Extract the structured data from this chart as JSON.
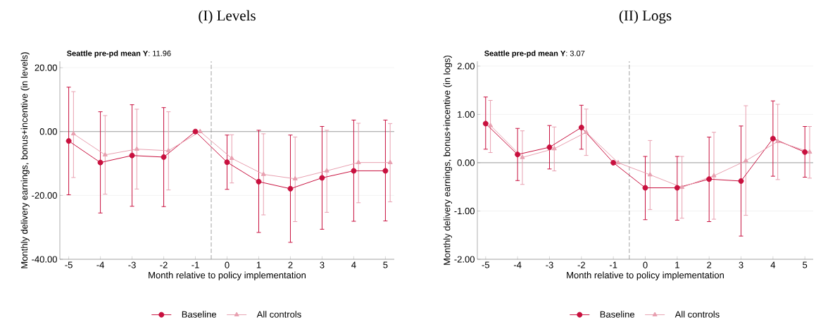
{
  "chart_data": [
    {
      "type": "line",
      "title": "(I) Levels",
      "xlabel": "Month relative to policy implementation",
      "ylabel": "Monthly delivery earnings, bonus+incentive (in levels)",
      "annotations": [
        "**Seattle pre-pd mean Y**:  11.96"
      ],
      "xlim": [
        -5.28,
        5.28
      ],
      "xticks": [
        -5,
        -4,
        -3,
        -2,
        -1,
        0,
        1,
        2,
        3,
        4,
        5
      ],
      "ylim": [
        -40,
        22
      ],
      "yticks": [
        {
          "value": -40,
          "label": "-40.00"
        },
        {
          "value": -20,
          "label": "-20.00"
        },
        {
          "value": 0,
          "label": "0.00"
        },
        {
          "value": 20,
          "label": "20.00"
        }
      ],
      "grid": "y",
      "legend": "bottom",
      "line_style": "solid",
      "ref_lines": [
        {
          "axis": "x",
          "value": -0.5,
          "color": "#8c8c8c",
          "line_style": "dashed"
        },
        {
          "axis": "y",
          "value": 0,
          "color": "#8c8c8c",
          "line_style": "solid"
        }
      ],
      "series": [
        {
          "name": "Baseline",
          "color": "#c8103e",
          "marker": "circle",
          "x": [
            -5,
            -4,
            -3,
            -2,
            -1,
            0,
            1,
            2,
            3,
            4,
            5
          ],
          "values": [
            -2.95,
            -9.7,
            -7.5,
            -8.0,
            0,
            -9.6,
            -15.7,
            -17.9,
            -14.5,
            -12.3,
            -12.3
          ],
          "errors": [
            [
              -19.8,
              13.9
            ],
            [
              -25.5,
              6.2
            ],
            [
              -23.4,
              8.4
            ],
            [
              -23.5,
              7.5
            ],
            null,
            [
              -18.1,
              -1.1
            ],
            [
              -31.6,
              0.4
            ],
            [
              -34.7,
              -1.1
            ],
            [
              -30.6,
              1.6
            ],
            [
              -28.1,
              3.6
            ],
            [
              -28.0,
              3.6
            ]
          ]
        },
        {
          "name": "All controls",
          "color": "#e8a0b0",
          "marker": "triangle",
          "x": [
            -4.85,
            -3.85,
            -2.85,
            -1.85,
            -0.85,
            0.15,
            1.15,
            2.15,
            3.15,
            4.15,
            5.15
          ],
          "values": [
            -0.7,
            -7.3,
            -5.5,
            -6.0,
            0,
            -8.4,
            -13.4,
            -14.8,
            -12.3,
            -9.7,
            -9.7
          ],
          "errors": [
            [
              -14.4,
              12.5
            ],
            [
              -19.6,
              5.0
            ],
            [
              -18.0,
              7.0
            ],
            [
              -18.3,
              6.2
            ],
            null,
            [
              -16.1,
              -1.0
            ],
            [
              -26.1,
              -0.7
            ],
            [
              -28.2,
              -1.7
            ],
            [
              -25.3,
              0.4
            ],
            [
              -22.3,
              2.6
            ],
            [
              -22.0,
              2.5
            ]
          ]
        }
      ]
    },
    {
      "type": "line",
      "title": "(II) Logs",
      "xlabel": "Month relative to policy implementation",
      "ylabel": "Monthly delivery earnings, bonus+incentive (in logs)",
      "annotations": [
        "**Seattle pre-pd mean Y**:  3.07"
      ],
      "xlim": [
        -5.26,
        5.26
      ],
      "xticks": [
        -5,
        -4,
        -3,
        -2,
        -1,
        0,
        1,
        2,
        3,
        4,
        5
      ],
      "ylim": [
        -2,
        2.1
      ],
      "yticks": [
        {
          "value": -2,
          "label": "-2.00"
        },
        {
          "value": -1,
          "label": "-1.00"
        },
        {
          "value": 0,
          "label": "0.00"
        },
        {
          "value": 1,
          "label": "1.00"
        },
        {
          "value": 2,
          "label": "2.00"
        }
      ],
      "grid": "y",
      "legend": "bottom",
      "line_style": "solid",
      "ref_lines": [
        {
          "axis": "x",
          "value": -0.5,
          "color": "#8c8c8c",
          "line_style": "dashed"
        },
        {
          "axis": "y",
          "value": 0,
          "color": "#8c8c8c",
          "line_style": "solid"
        }
      ],
      "series": [
        {
          "name": "Baseline",
          "color": "#c8103e",
          "marker": "circle",
          "x": [
            -5,
            -4,
            -3,
            -2,
            -1,
            0,
            1,
            2,
            3,
            4,
            5
          ],
          "values": [
            0.81,
            0.17,
            0.32,
            0.73,
            0,
            -0.52,
            -0.52,
            -0.34,
            -0.38,
            0.5,
            0.22
          ],
          "errors": [
            [
              0.28,
              1.36
            ],
            [
              -0.37,
              0.71
            ],
            [
              -0.13,
              0.77
            ],
            [
              0.28,
              1.19
            ],
            null,
            [
              -1.18,
              0.13
            ],
            [
              -1.19,
              0.13
            ],
            [
              -1.22,
              0.53
            ],
            [
              -1.52,
              0.76
            ],
            [
              -0.28,
              1.28
            ],
            [
              -0.3,
              0.75
            ]
          ]
        },
        {
          "name": "All controls",
          "color": "#e8a0b0",
          "marker": "triangle",
          "x": [
            -4.85,
            -3.85,
            -2.85,
            -1.85,
            -0.85,
            0.15,
            1.15,
            2.15,
            3.15,
            4.15,
            5.15
          ],
          "values": [
            0.77,
            0.11,
            0.29,
            0.63,
            0,
            -0.25,
            -0.51,
            -0.27,
            0.04,
            0.44,
            0.22
          ],
          "errors": [
            [
              0.21,
              1.29
            ],
            [
              -0.45,
              0.66
            ],
            [
              -0.17,
              0.74
            ],
            [
              0.15,
              1.11
            ],
            null,
            [
              -0.97,
              0.46
            ],
            [
              -1.15,
              0.13
            ],
            [
              -1.17,
              0.63
            ],
            [
              -1.09,
              1.18
            ],
            [
              -0.35,
              1.21
            ],
            [
              -0.32,
              0.75
            ]
          ]
        }
      ]
    }
  ]
}
